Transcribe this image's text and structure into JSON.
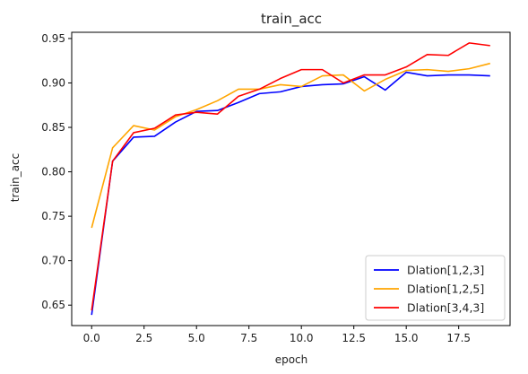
{
  "chart_data": {
    "type": "line",
    "title": "train_acc",
    "xlabel": "epoch",
    "ylabel": "train_acc",
    "xlim": [
      -0.95,
      19.95
    ],
    "ylim": [
      0.627,
      0.957
    ],
    "xticks": [
      0.0,
      2.5,
      5.0,
      7.5,
      10.0,
      12.5,
      15.0,
      17.5
    ],
    "xtick_labels": [
      "0.0",
      "2.5",
      "5.0",
      "7.5",
      "10.0",
      "12.5",
      "15.0",
      "17.5"
    ],
    "yticks": [
      0.65,
      0.7,
      0.75,
      0.8,
      0.85,
      0.9,
      0.95
    ],
    "ytick_labels": [
      "0.65",
      "0.70",
      "0.75",
      "0.80",
      "0.85",
      "0.90",
      "0.95"
    ],
    "grid": false,
    "legend_position": "bottom-right",
    "x": [
      0,
      1,
      2,
      3,
      4,
      5,
      6,
      7,
      8,
      9,
      10,
      11,
      12,
      13,
      14,
      15,
      16,
      17,
      18,
      19
    ],
    "series": [
      {
        "name": "Dlation[1,2,3]",
        "color": "#0000ff",
        "values": [
          0.639,
          0.812,
          0.839,
          0.84,
          0.856,
          0.868,
          0.869,
          0.878,
          0.888,
          0.89,
          0.896,
          0.898,
          0.899,
          0.907,
          0.892,
          0.912,
          0.908,
          0.909,
          0.909,
          0.908
        ]
      },
      {
        "name": "Dlation[1,2,5]",
        "color": "#ffa500",
        "values": [
          0.737,
          0.827,
          0.852,
          0.847,
          0.862,
          0.87,
          0.88,
          0.893,
          0.893,
          0.898,
          0.896,
          0.908,
          0.909,
          0.891,
          0.904,
          0.914,
          0.915,
          0.913,
          0.916,
          0.922
        ]
      },
      {
        "name": "Dlation[3,4,3]",
        "color": "#ff0000",
        "values": [
          0.644,
          0.812,
          0.844,
          0.849,
          0.864,
          0.867,
          0.865,
          0.885,
          0.893,
          0.905,
          0.915,
          0.915,
          0.9,
          0.909,
          0.909,
          0.918,
          0.932,
          0.931,
          0.945,
          0.942
        ]
      }
    ]
  }
}
